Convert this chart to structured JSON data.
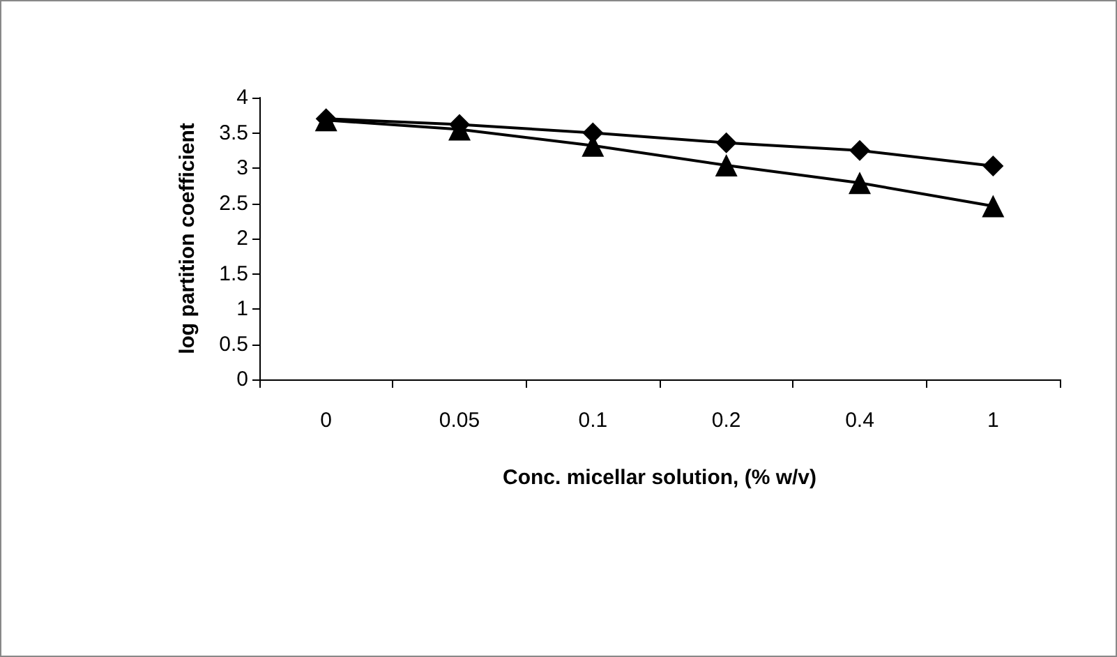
{
  "chart_data": {
    "type": "line",
    "xlabel": "Conc. micellar solution, (% w/v)",
    "ylabel": "log partition coefficient",
    "categories": [
      "0",
      "0.05",
      "0.1",
      "0.2",
      "0.4",
      "1"
    ],
    "series": [
      {
        "color": "#000000",
        "marker": "diamond",
        "values": [
          3.7,
          3.62,
          3.5,
          3.36,
          3.25,
          3.03
        ]
      },
      {
        "color": "#000000",
        "marker": "triangle",
        "values": [
          3.68,
          3.55,
          3.32,
          3.04,
          2.79,
          2.46
        ]
      }
    ],
    "ylim": [
      0,
      4
    ],
    "yticks": [
      0,
      0.5,
      1,
      1.5,
      2,
      2.5,
      3,
      3.5,
      4
    ],
    "grid": false,
    "line_style": "solid"
  }
}
